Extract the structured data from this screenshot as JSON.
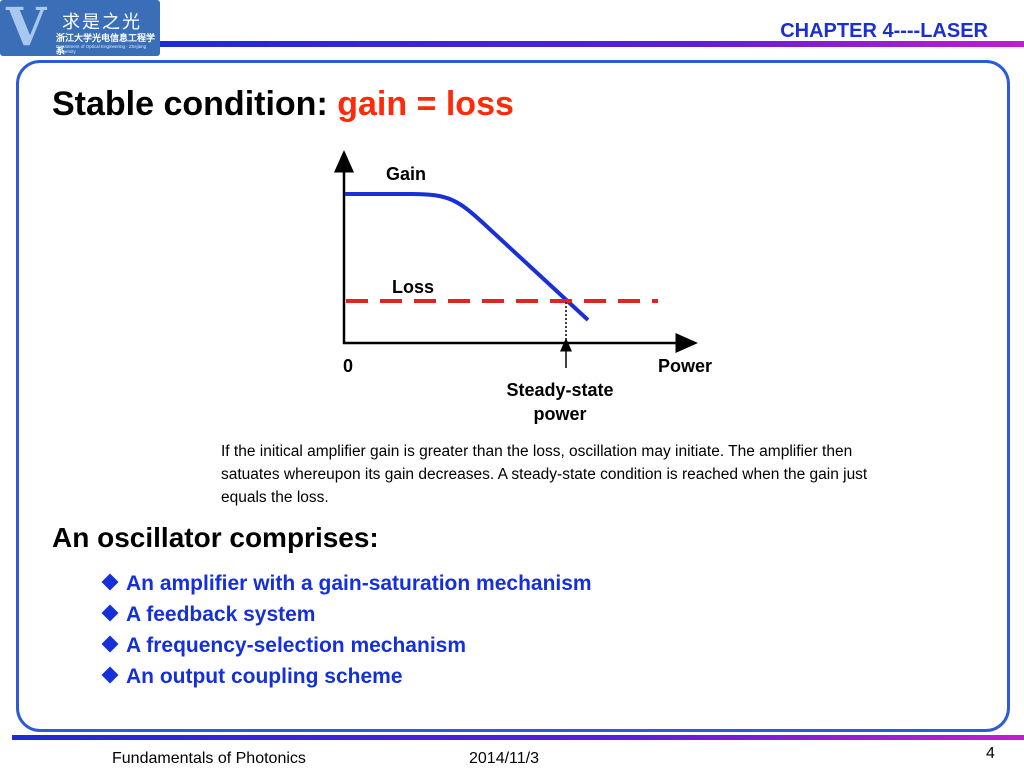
{
  "logo": {
    "mark": "V",
    "line1": "求是之光",
    "line2": "浙江大学光电信息工程学系",
    "line3": "Department of Optical Engineering · Zhejiang University"
  },
  "header": {
    "chapter": "CHAPTER 4----LASER"
  },
  "slide": {
    "title_prefix": "Stable condition: ",
    "title_highlight": "gain = loss"
  },
  "diagram": {
    "gain_label": "Gain",
    "loss_label": "Loss",
    "origin_label": "0",
    "power_label": "Power",
    "steady_label_line1": "Steady-state",
    "steady_label_line2": "power",
    "colors": {
      "gain_curve": "#1a2fd8",
      "loss_line": "#e02424",
      "axis": "#000000"
    }
  },
  "caption": "If the initical amplifier gain is greater than the loss, oscillation may initiate. The amplifier then satuates whereupon its gain decreases. A steady-state condition is reached when the gain just equals the loss.",
  "oscillator": {
    "heading": "An oscillator comprises:",
    "items": [
      "An amplifier with a gain-saturation mechanism",
      "A feedback system",
      "A frequency-selection mechanism",
      "An output coupling scheme"
    ]
  },
  "footer": {
    "course": "Fundamentals of Photonics",
    "date": "2014/11/3",
    "page": "4"
  },
  "colors": {
    "accent_blue": "#1530d8",
    "highlight_red": "#ff2a0a",
    "frame_blue": "#2c5bd8"
  }
}
